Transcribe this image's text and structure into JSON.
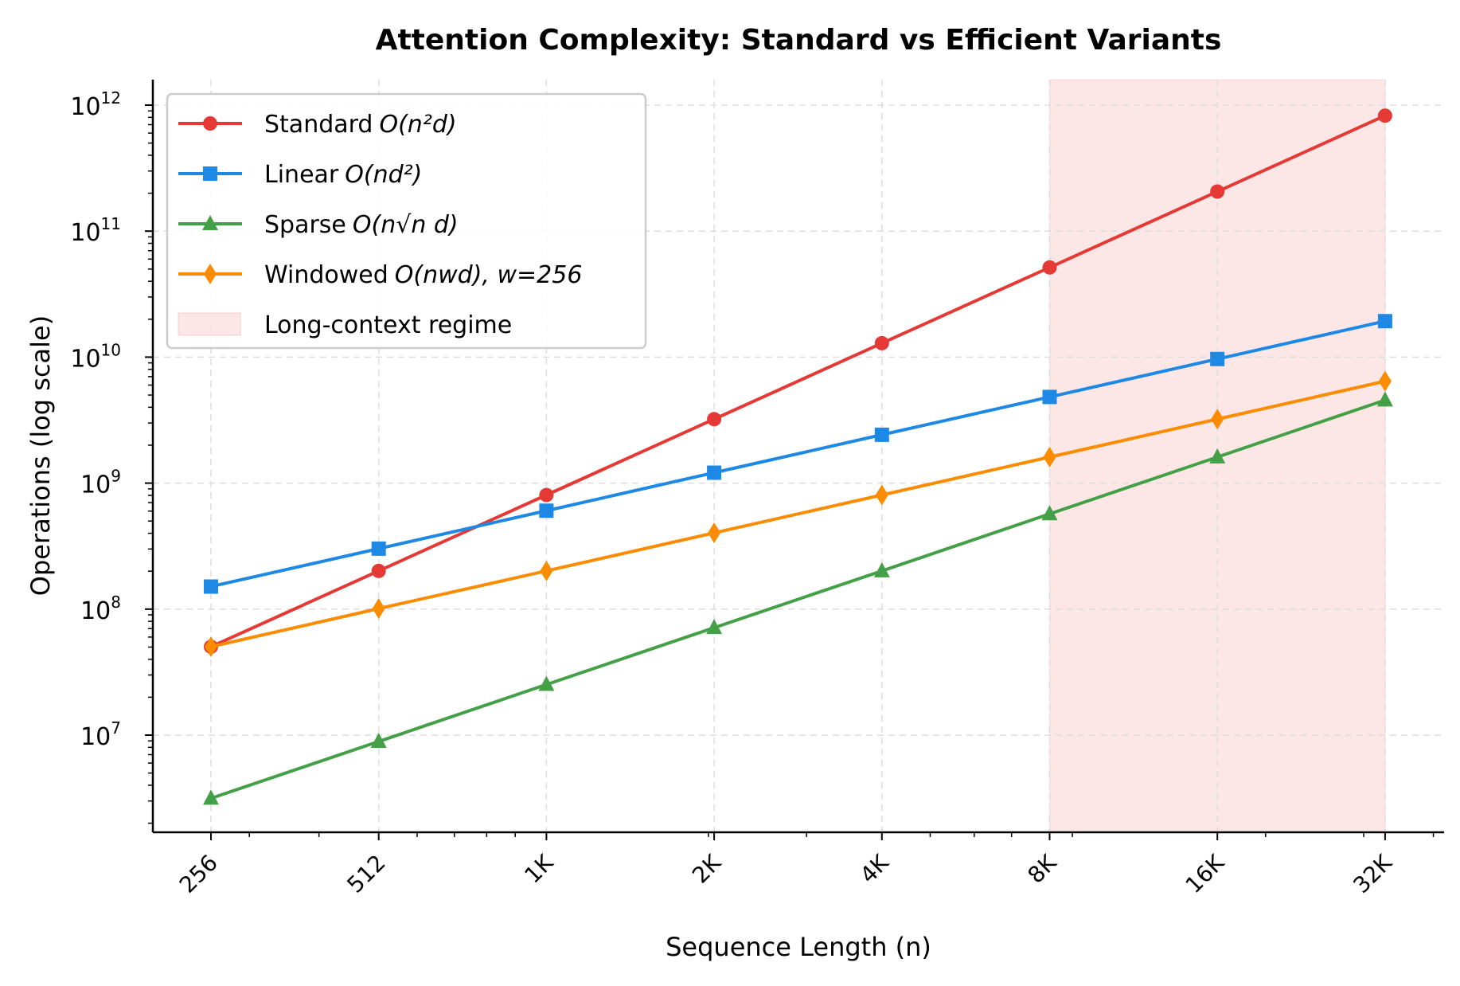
{
  "chart_data": {
    "type": "line",
    "title": "Attention Complexity: Standard vs Efficient Variants",
    "xlabel": "Sequence Length (n)",
    "ylabel": "Operations (log scale)",
    "x": [
      256,
      512,
      1024,
      2048,
      4096,
      8192,
      16384,
      32768
    ],
    "x_tick_labels": [
      "256",
      "512",
      "1K",
      "2K",
      "4K",
      "8K",
      "16K",
      "32K"
    ],
    "x_scale": "log2",
    "y_scale": "log10",
    "y_tick_labels": [
      "10^7",
      "10^8",
      "10^9",
      "10^10",
      "10^11",
      "10^12"
    ],
    "y_tick_exponents": [
      "7",
      "8",
      "9",
      "10",
      "11",
      "12"
    ],
    "ylim": [
      1700000.0,
      1600000000000.0
    ],
    "grid": true,
    "legend_position": "upper-left",
    "series": [
      {
        "name": "Standard O(n²d)",
        "label_prefix": "Standard",
        "label_math": "O(n²d)",
        "color": "#e53935",
        "marker": "circle",
        "values": [
          50300000.0,
          201000000.0,
          805000000.0,
          3220000000.0,
          12900000000.0,
          51500000000.0,
          206000000000.0,
          825000000000.0
        ]
      },
      {
        "name": "Linear O(nd²)",
        "label_prefix": "Linear",
        "label_math": "O(nd²)",
        "color": "#1e88e5",
        "marker": "square",
        "values": [
          151000000.0,
          302000000.0,
          604000000.0,
          1210000000.0,
          2420000000.0,
          4830000000.0,
          9660000000.0,
          19300000000.0
        ]
      },
      {
        "name": "Sparse O(n√n d)",
        "label_prefix": "Sparse",
        "label_math": "O(n√n d)",
        "color": "#43a047",
        "marker": "triangle",
        "values": [
          3150000.0,
          8900000.0,
          25200000.0,
          71200000.0,
          201000000.0,
          570000000.0,
          1610000000.0,
          4560000000.0
        ]
      },
      {
        "name": "Windowed O(nwd), w=256",
        "label_prefix": "Windowed",
        "label_math": "O(nwd), w=256",
        "color": "#fb8c00",
        "marker": "diamond",
        "values": [
          50300000.0,
          101000000.0,
          201000000.0,
          403000000.0,
          805000000.0,
          1610000000.0,
          3220000000.0,
          6440000000.0
        ]
      }
    ],
    "shaded_region": {
      "name": "Long-context regime",
      "x_start": 8192,
      "x_end": 32768,
      "color": "#e53935"
    }
  }
}
